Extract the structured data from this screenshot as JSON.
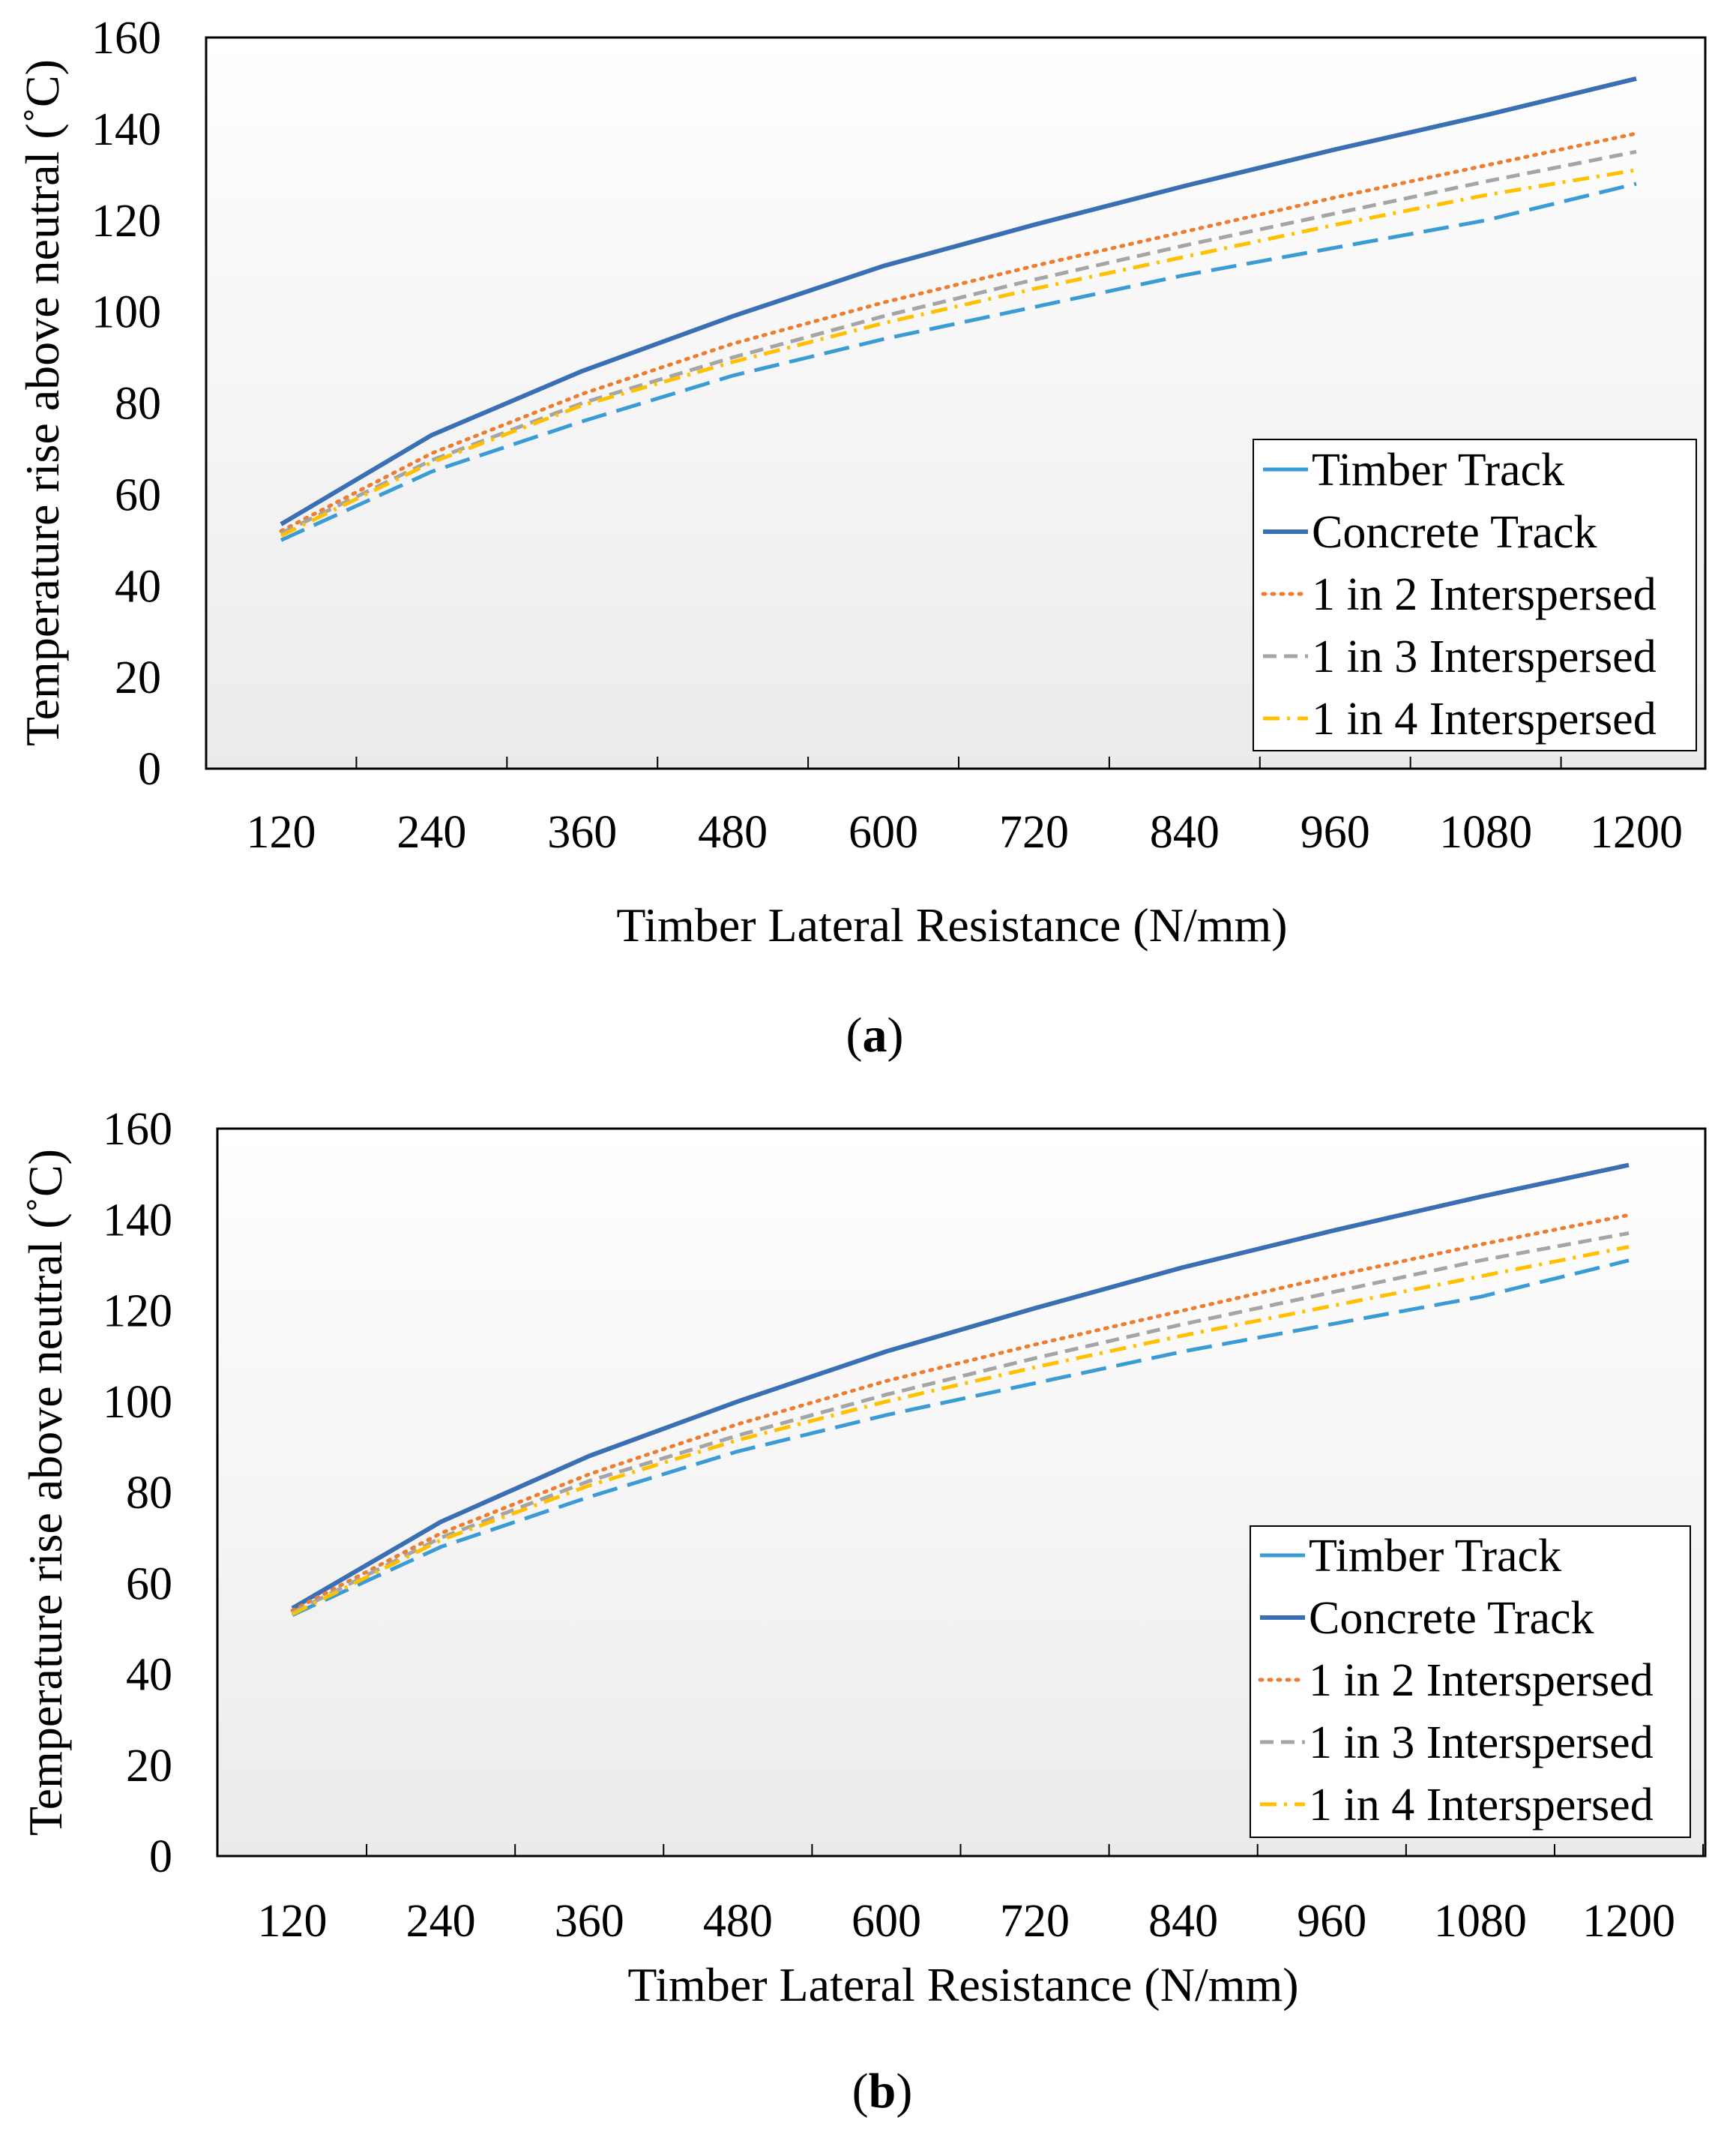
{
  "figure": {
    "panels": [
      "a",
      "b"
    ]
  },
  "chart_data": [
    {
      "type": "line",
      "panel_label": "a",
      "title": "",
      "xlabel": "Timber Lateral Resistance (N/mm)",
      "ylabel": "Temperature rise above neutral (˚C)",
      "categories": [
        "120",
        "240",
        "360",
        "480",
        "600",
        "720",
        "840",
        "960",
        "1080",
        "1200"
      ],
      "y_ticks": [
        "0",
        "20",
        "40",
        "60",
        "80",
        "100",
        "120",
        "140",
        "160"
      ],
      "ylim": [
        0,
        160
      ],
      "grid": false,
      "legend_position": "bottom-right",
      "series": [
        {
          "name": "Timber Track",
          "style": "long-dash",
          "color": "#3a9bd5",
          "values": [
            50,
            65,
            76,
            86,
            94,
            101,
            108,
            114,
            120,
            128
          ]
        },
        {
          "name": "Concrete Track",
          "style": "solid",
          "color": "#3a6fb4",
          "values": [
            53.5,
            73,
            87,
            99,
            110,
            119,
            127.5,
            135.5,
            143,
            151
          ]
        },
        {
          "name": "1 in 2 Interspersed",
          "style": "dotted",
          "color": "#ed7d31",
          "values": [
            52,
            69,
            82,
            93,
            102,
            110,
            117.5,
            125,
            132,
            139
          ]
        },
        {
          "name": "1 in 3 Interspersed",
          "style": "dashed",
          "color": "#a5a5a5",
          "values": [
            51.5,
            67.5,
            80,
            90,
            99,
            107,
            114.5,
            121.5,
            128.5,
            135
          ]
        },
        {
          "name": "1 in 4 Interspersed",
          "style": "dash-dot",
          "color": "#ffc000",
          "values": [
            51,
            67,
            79.5,
            89,
            97.5,
            105,
            112,
            119,
            125.5,
            131
          ]
        }
      ]
    },
    {
      "type": "line",
      "panel_label": "b",
      "title": "",
      "xlabel": "Timber Lateral Resistance (N/mm)",
      "ylabel": "Temperature rise above neutral (˚C)",
      "categories": [
        "120",
        "240",
        "360",
        "480",
        "600",
        "720",
        "840",
        "960",
        "1080",
        "1200"
      ],
      "y_ticks": [
        "0",
        "20",
        "40",
        "60",
        "80",
        "100",
        "120",
        "140",
        "160"
      ],
      "ylim": [
        0,
        160
      ],
      "grid": false,
      "legend_position": "bottom-right",
      "series": [
        {
          "name": "Timber Track",
          "style": "long-dash",
          "color": "#3a9bd5",
          "values": [
            53,
            68,
            79,
            89,
            97,
            104,
            111,
            117,
            123,
            131
          ]
        },
        {
          "name": "Concrete Track",
          "style": "solid",
          "color": "#3a6fb4",
          "values": [
            54.5,
            73.5,
            88,
            100,
            111,
            120.5,
            129.5,
            137.5,
            145,
            152
          ]
        },
        {
          "name": "1 in 2 Interspersed",
          "style": "dotted",
          "color": "#ed7d31",
          "values": [
            54,
            71,
            84,
            95,
            104.5,
            112.5,
            120,
            127.5,
            134.5,
            141
          ]
        },
        {
          "name": "1 in 3 Interspersed",
          "style": "dashed",
          "color": "#a5a5a5",
          "values": [
            53.5,
            70,
            82.5,
            92.5,
            101.5,
            109.5,
            117,
            124,
            131,
            137
          ]
        },
        {
          "name": "1 in 4 Interspersed",
          "style": "dash-dot",
          "color": "#ffc000",
          "values": [
            53.2,
            69.5,
            81.5,
            91.5,
            100,
            107.5,
            114.5,
            121,
            127.5,
            134
          ]
        }
      ]
    }
  ]
}
